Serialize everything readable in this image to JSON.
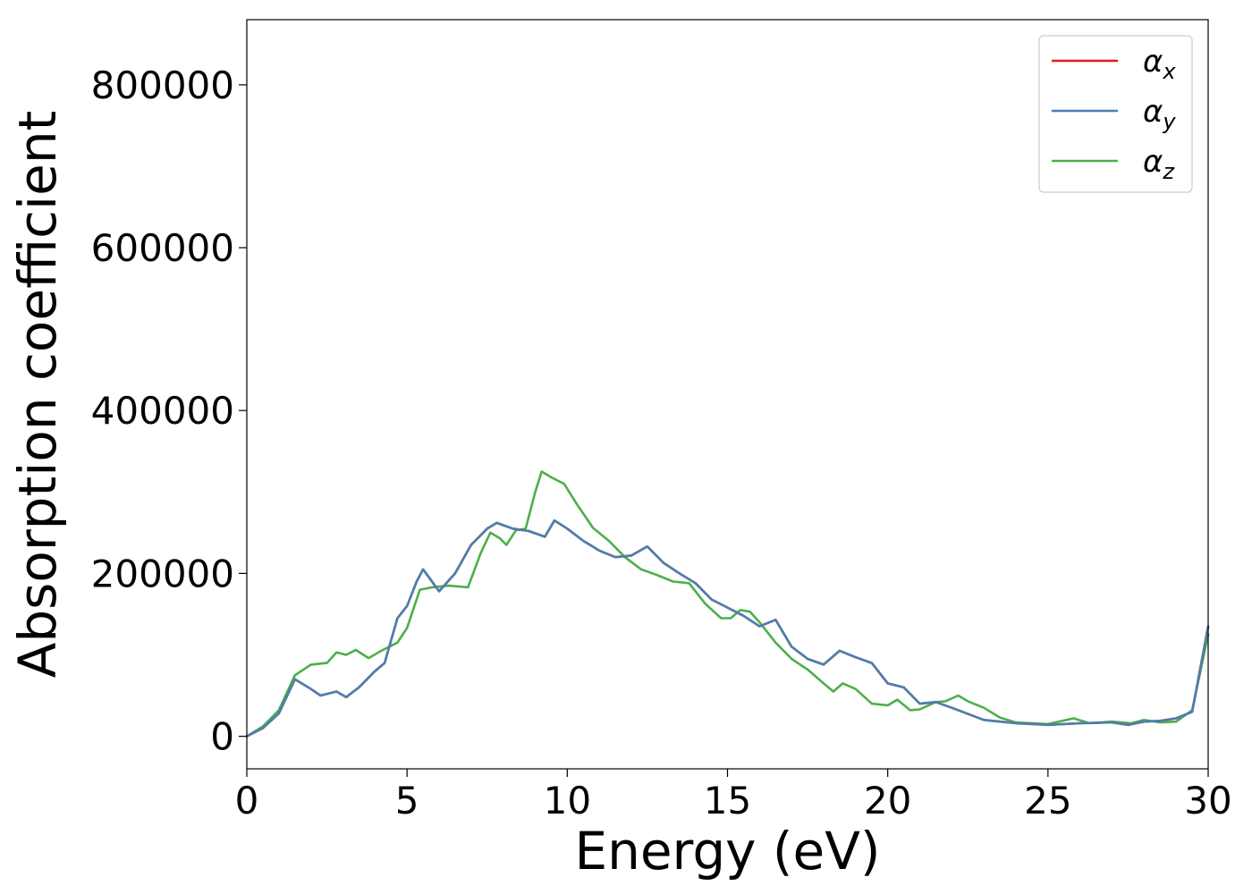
{
  "chart_data": {
    "type": "line",
    "title": "",
    "xlabel": "Energy (eV)",
    "ylabel": "Absorption coefficient",
    "xlim": [
      0,
      30
    ],
    "ylim": [
      -40000,
      880000
    ],
    "xticks": [
      0,
      5,
      10,
      15,
      20,
      25,
      30
    ],
    "xtick_labels": [
      "0",
      "5",
      "10",
      "15",
      "20",
      "25",
      "30"
    ],
    "yticks": [
      0,
      200000,
      400000,
      600000,
      800000
    ],
    "ytick_labels": [
      "0",
      "200000",
      "400000",
      "600000",
      "800000"
    ],
    "grid": false,
    "legend_position": "top-right",
    "series": [
      {
        "name": "α",
        "sub": "x",
        "color": "#e41a1c",
        "x": [
          0,
          0.5,
          1.0,
          1.5,
          2.0,
          2.3,
          2.8,
          3.1,
          3.5,
          4.0,
          4.3,
          4.7,
          5.0,
          5.3,
          5.5,
          6.0,
          6.5,
          7.0,
          7.5,
          7.8,
          8.3,
          8.8,
          9.3,
          9.6,
          10.0,
          10.5,
          11.0,
          11.5,
          12.0,
          12.5,
          13.0,
          13.5,
          14.0,
          14.5,
          15.0,
          15.5,
          16.0,
          16.5,
          17.0,
          17.5,
          18.0,
          18.5,
          19.0,
          19.5,
          20.0,
          20.5,
          21.0,
          21.5,
          22.0,
          23.0,
          24.0,
          25.0,
          26.0,
          27.0,
          27.5,
          28.0,
          28.5,
          29.0,
          29.5,
          30.0
        ],
        "values": [
          0,
          10000,
          28000,
          70000,
          58000,
          50000,
          55000,
          48000,
          60000,
          80000,
          90000,
          145000,
          160000,
          190000,
          205000,
          178000,
          200000,
          235000,
          255000,
          262000,
          255000,
          252000,
          245000,
          265000,
          255000,
          240000,
          228000,
          220000,
          222000,
          233000,
          213000,
          200000,
          188000,
          168000,
          158000,
          148000,
          135000,
          143000,
          110000,
          95000,
          88000,
          105000,
          97000,
          90000,
          65000,
          60000,
          40000,
          42000,
          35000,
          20000,
          16000,
          14000,
          16000,
          17000,
          14000,
          18000,
          19000,
          22000,
          30000,
          135000
        ]
      },
      {
        "name": "α",
        "sub": "y",
        "color": "#4a7fb0",
        "x": [
          0,
          0.5,
          1.0,
          1.5,
          2.0,
          2.3,
          2.8,
          3.1,
          3.5,
          4.0,
          4.3,
          4.7,
          5.0,
          5.3,
          5.5,
          6.0,
          6.5,
          7.0,
          7.5,
          7.8,
          8.3,
          8.8,
          9.3,
          9.6,
          10.0,
          10.5,
          11.0,
          11.5,
          12.0,
          12.5,
          13.0,
          13.5,
          14.0,
          14.5,
          15.0,
          15.5,
          16.0,
          16.5,
          17.0,
          17.5,
          18.0,
          18.5,
          19.0,
          19.5,
          20.0,
          20.5,
          21.0,
          21.5,
          22.0,
          23.0,
          24.0,
          25.0,
          26.0,
          27.0,
          27.5,
          28.0,
          28.5,
          29.0,
          29.5,
          30.0
        ],
        "values": [
          0,
          10000,
          28000,
          70000,
          58000,
          50000,
          55000,
          48000,
          60000,
          80000,
          90000,
          145000,
          160000,
          190000,
          205000,
          178000,
          200000,
          235000,
          255000,
          262000,
          255000,
          252000,
          245000,
          265000,
          255000,
          240000,
          228000,
          220000,
          222000,
          233000,
          213000,
          200000,
          188000,
          168000,
          158000,
          148000,
          135000,
          143000,
          110000,
          95000,
          88000,
          105000,
          97000,
          90000,
          65000,
          60000,
          40000,
          42000,
          35000,
          20000,
          16000,
          14000,
          16000,
          17000,
          14000,
          18000,
          19000,
          22000,
          30000,
          135000
        ]
      },
      {
        "name": "α",
        "sub": "z",
        "color": "#4daf4a",
        "x": [
          0,
          0.5,
          1.0,
          1.5,
          2.0,
          2.5,
          2.8,
          3.1,
          3.4,
          3.8,
          4.2,
          4.7,
          5.0,
          5.4,
          5.8,
          6.3,
          6.9,
          7.3,
          7.6,
          7.9,
          8.1,
          8.4,
          8.7,
          9.0,
          9.2,
          9.5,
          9.9,
          10.3,
          10.8,
          11.3,
          11.8,
          12.3,
          12.8,
          13.3,
          13.8,
          14.3,
          14.8,
          15.1,
          15.4,
          15.7,
          16.0,
          16.5,
          17.0,
          17.5,
          18.0,
          18.3,
          18.6,
          19.0,
          19.5,
          20.0,
          20.3,
          20.7,
          21.0,
          21.5,
          21.8,
          22.2,
          22.5,
          23.0,
          23.5,
          24.0,
          25.0,
          25.8,
          26.3,
          27.0,
          27.6,
          28.0,
          28.5,
          29.0,
          29.5,
          30.0
        ],
        "values": [
          0,
          12000,
          32000,
          75000,
          88000,
          90000,
          103000,
          100000,
          106000,
          96000,
          105000,
          115000,
          133000,
          180000,
          183000,
          185000,
          183000,
          225000,
          250000,
          243000,
          235000,
          253000,
          255000,
          300000,
          325000,
          318000,
          310000,
          285000,
          256000,
          240000,
          220000,
          205000,
          198000,
          190000,
          188000,
          163000,
          145000,
          145000,
          155000,
          153000,
          140000,
          115000,
          95000,
          82000,
          65000,
          55000,
          65000,
          58000,
          40000,
          38000,
          45000,
          32000,
          33000,
          42000,
          43000,
          50000,
          43000,
          35000,
          23000,
          17000,
          15000,
          22000,
          16000,
          18000,
          16000,
          20000,
          17000,
          18000,
          32000,
          125000
        ]
      }
    ]
  }
}
